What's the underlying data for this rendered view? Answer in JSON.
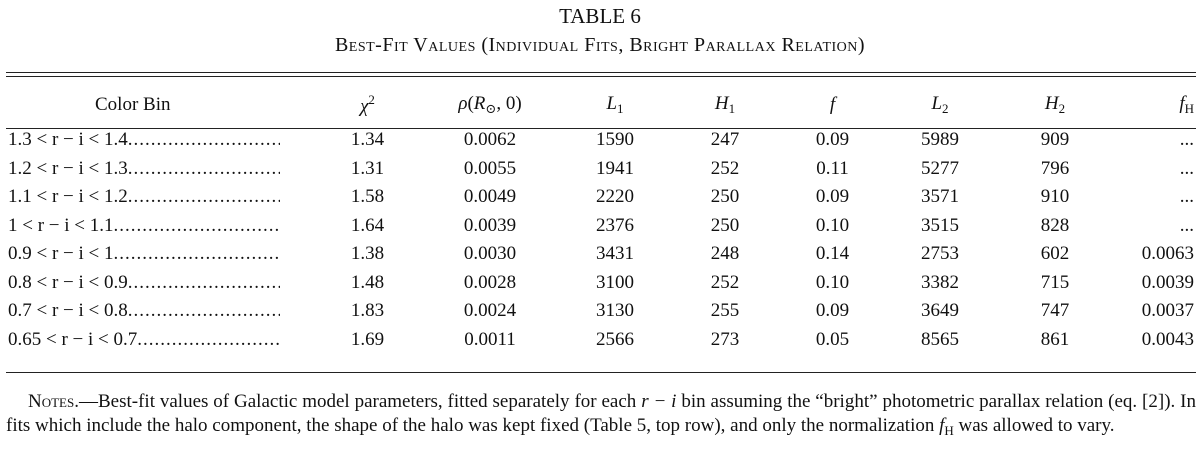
{
  "header": {
    "label": "TABLE 6",
    "title": "Best-Fit Values (Individual Fits, Bright Parallax Relation)"
  },
  "table": {
    "columns": [
      [
        {
          "text": "Color Bin"
        }
      ],
      [
        {
          "text": "χ",
          "style": "italic"
        },
        {
          "text": "2",
          "style": "sup"
        }
      ],
      [
        {
          "text": "ρ",
          "style": "italic"
        },
        {
          "text": "("
        },
        {
          "text": "R",
          "style": "italic"
        },
        {
          "text": "⊙",
          "style": "sub"
        },
        {
          "text": ", 0)"
        }
      ],
      [
        {
          "text": "L",
          "style": "italic"
        },
        {
          "text": "1",
          "style": "sub"
        }
      ],
      [
        {
          "text": "H",
          "style": "italic"
        },
        {
          "text": "1",
          "style": "sub"
        }
      ],
      [
        {
          "text": "f",
          "style": "italic"
        }
      ],
      [
        {
          "text": "L",
          "style": "italic"
        },
        {
          "text": "2",
          "style": "sub"
        }
      ],
      [
        {
          "text": "H",
          "style": "italic"
        },
        {
          "text": "2",
          "style": "sub"
        }
      ],
      [
        {
          "text": "f",
          "style": "italic"
        },
        {
          "text": "H",
          "style": "sub"
        }
      ]
    ],
    "rows": [
      [
        "1.3 < r − i < 1.4",
        "1.34",
        "0.0062",
        "1590",
        "247",
        "0.09",
        "5989",
        "909",
        "..."
      ],
      [
        "1.2 < r − i < 1.3",
        "1.31",
        "0.0055",
        "1941",
        "252",
        "0.11",
        "5277",
        "796",
        "..."
      ],
      [
        "1.1 < r − i < 1.2",
        "1.58",
        "0.0049",
        "2220",
        "250",
        "0.09",
        "3571",
        "910",
        "..."
      ],
      [
        "1 < r − i < 1.1",
        "1.64",
        "0.0039",
        "2376",
        "250",
        "0.10",
        "3515",
        "828",
        "..."
      ],
      [
        "0.9 < r − i < 1",
        "1.38",
        "0.0030",
        "3431",
        "248",
        "0.14",
        "2753",
        "602",
        "0.0063"
      ],
      [
        "0.8 < r − i < 0.9",
        "1.48",
        "0.0028",
        "3100",
        "252",
        "0.10",
        "3382",
        "715",
        "0.0039"
      ],
      [
        "0.7 < r − i < 0.8",
        "1.83",
        "0.0024",
        "3130",
        "255",
        "0.09",
        "3649",
        "747",
        "0.0037"
      ],
      [
        "0.65 < r − i < 0.7",
        "1.69",
        "0.0011",
        "2566",
        "273",
        "0.05",
        "8565",
        "861",
        "0.0043"
      ]
    ]
  },
  "notes": [
    {
      "text": "Notes.",
      "style": "smallcaps"
    },
    {
      "text": "—Best-fit values of Galactic model parameters, fitted separately for each "
    },
    {
      "text": "r − i",
      "style": "italic"
    },
    {
      "text": " bin assuming the “bright” photometric parallax relation (eq. [2]). In fits which include the halo component, the shape of the halo was kept fixed (Table 5, top row), and only the normalization "
    },
    {
      "text": "f",
      "style": "italic"
    },
    {
      "text": "H",
      "style": "sub"
    },
    {
      "text": " was allowed to vary."
    }
  ]
}
